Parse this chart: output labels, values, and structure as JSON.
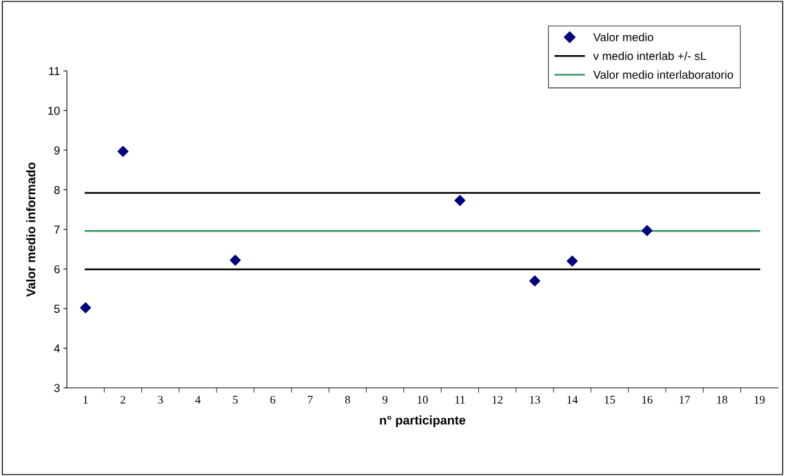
{
  "chart_data": {
    "type": "scatter",
    "xlabel": "n° participante",
    "ylabel": "Valor medio informado",
    "categories": [
      "1",
      "2",
      "3",
      "4",
      "5",
      "6",
      "7",
      "8",
      "9",
      "10",
      "11",
      "12",
      "13",
      "14",
      "15",
      "16",
      "17",
      "18",
      "19"
    ],
    "series": [
      {
        "name": "Valor medio",
        "color": "#000080",
        "marker": "diamond",
        "values": [
          5.02,
          8.97,
          null,
          null,
          6.22,
          null,
          null,
          null,
          null,
          null,
          7.73,
          null,
          5.7,
          6.2,
          null,
          6.97,
          null,
          null,
          null
        ]
      },
      {
        "name": "v medio interlab +/- sL",
        "type": "line",
        "color": "#000000",
        "marker": "none",
        "values": [
          7.92,
          7.92,
          7.92,
          7.92,
          7.92,
          7.92,
          7.92,
          7.92,
          7.92,
          7.92,
          7.92,
          7.92,
          7.92,
          7.92,
          7.92,
          7.92,
          7.92,
          7.92,
          7.92
        ]
      },
      {
        "type": "line",
        "color": "#000000",
        "marker": "none",
        "values": [
          5.99,
          5.99,
          5.99,
          5.99,
          5.99,
          5.99,
          5.99,
          5.99,
          5.99,
          5.99,
          5.99,
          5.99,
          5.99,
          5.99,
          5.99,
          5.99,
          5.99,
          5.99,
          5.99
        ]
      },
      {
        "name": "Valor medio interlaboratorio",
        "type": "line",
        "color": "#339966",
        "marker": "none",
        "values": [
          6.96,
          6.96,
          6.96,
          6.96,
          6.96,
          6.96,
          6.96,
          6.96,
          6.96,
          6.96,
          6.96,
          6.96,
          6.96,
          6.96,
          6.96,
          6.96,
          6.96,
          6.96,
          6.96
        ]
      }
    ],
    "ylim": [
      3,
      11
    ],
    "yticks": [
      3,
      4,
      5,
      6,
      7,
      8,
      9,
      10,
      11
    ],
    "grid": false,
    "legend": "top right"
  }
}
